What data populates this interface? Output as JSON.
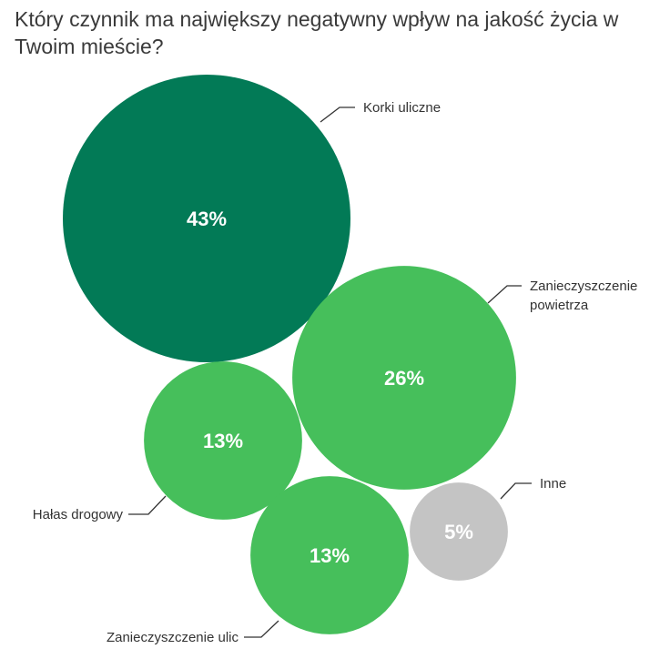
{
  "chart_data": {
    "type": "bubble",
    "title": "Który czynnik ma największy negatywny wpływ na jakość życia w Twoim mieście?",
    "unit": "%",
    "series": [
      {
        "category": "Korki uliczne",
        "value": 43,
        "display": "43%",
        "color": "#027A56",
        "label_lines": [
          "Korki uliczne"
        ]
      },
      {
        "category": "Zanieczyszczenie powietrza",
        "value": 26,
        "display": "26%",
        "color": "#46BF5B",
        "label_lines": [
          "Zanieczyszczenie",
          "powietrza"
        ]
      },
      {
        "category": "Hałas drogowy",
        "value": 13,
        "display": "13%",
        "color": "#46BF5B",
        "label_lines": [
          "Hałas drogowy"
        ]
      },
      {
        "category": "Zanieczyszczenie ulic",
        "value": 13,
        "display": "13%",
        "color": "#46BF5B",
        "label_lines": [
          "Zanieczyszczenie ulic"
        ]
      },
      {
        "category": "Inne",
        "value": 5,
        "display": "5%",
        "color": "#C4C4C4",
        "label_lines": [
          "Inne"
        ]
      }
    ]
  }
}
